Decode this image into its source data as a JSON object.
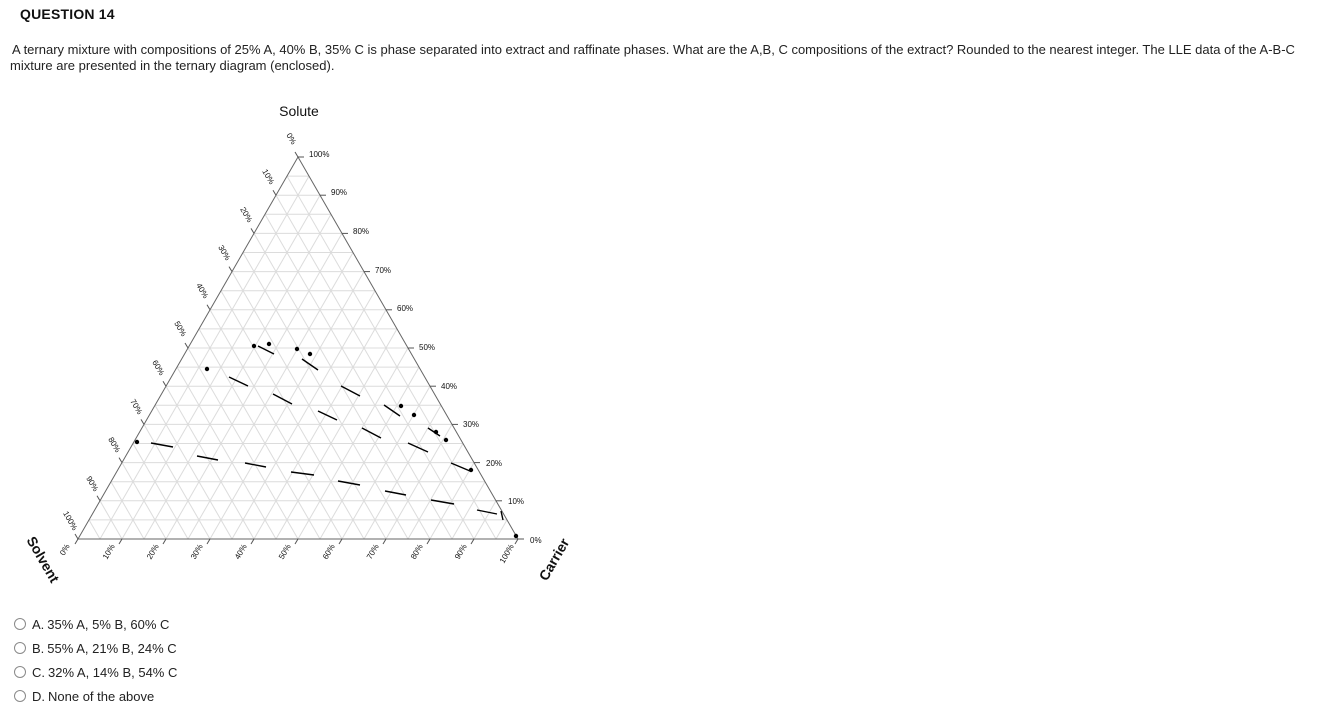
{
  "question": {
    "title": "QUESTION 14",
    "text_line1": "A ternary mixture with compositions of 25% A, 40% B, 35% C is phase separated into extract and raffinate phases. What are the A,B, C compositions of the extract? Rounded to the nearest integer. The LLE data of the A-B-C",
    "text_line2": "mixture are presented in the ternary diagram (enclosed)."
  },
  "diagram": {
    "top_label": "Solute",
    "left_label": "Solvent",
    "right_label": "Carrier",
    "right_tick_labels": [
      "100%",
      "90%",
      "80%",
      "70%",
      "60%",
      "50%",
      "40%",
      "30%",
      "20%",
      "10%",
      "0%"
    ],
    "left_tick_labels": [
      "0%",
      "10%",
      "20%",
      "30%",
      "40%",
      "50%",
      "60%",
      "70%",
      "80%",
      "90%",
      "100%"
    ],
    "bottom_tick_labels": [
      "0%",
      "10%",
      "20%",
      "30%",
      "40%",
      "50%",
      "60%",
      "70%",
      "80%",
      "90%",
      "100%"
    ]
  },
  "answers": [
    {
      "letter": "A.",
      "text": "35% A, 5% B, 60% C"
    },
    {
      "letter": "B.",
      "text": "55% A, 21% B, 24% C"
    },
    {
      "letter": "C.",
      "text": "32% A, 14% B, 54% C"
    },
    {
      "letter": "D.",
      "text": "None of the above"
    }
  ]
}
